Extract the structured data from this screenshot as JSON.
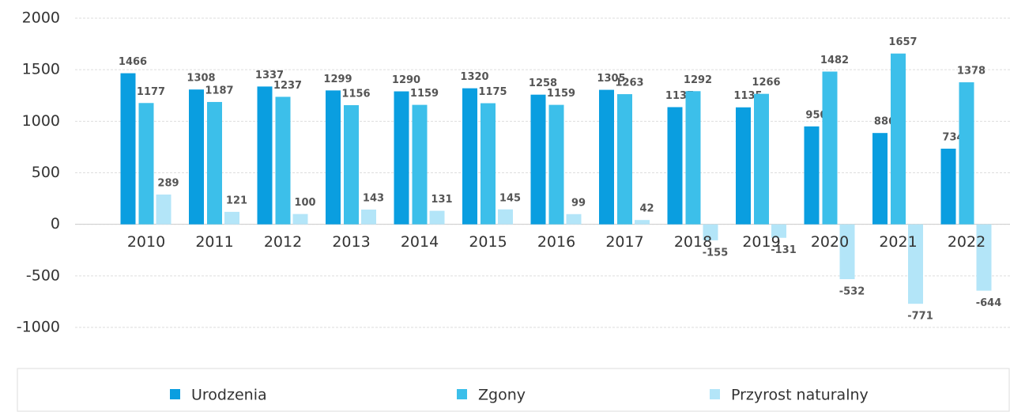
{
  "chart_data": {
    "type": "bar",
    "categories": [
      "2010",
      "2011",
      "2012",
      "2013",
      "2014",
      "2015",
      "2016",
      "2017",
      "2018",
      "2019",
      "2020",
      "2021",
      "2022"
    ],
    "series": [
      {
        "name": "Urodzenia",
        "color": "#0a9ee0",
        "values": [
          1466,
          1308,
          1337,
          1299,
          1290,
          1320,
          1258,
          1305,
          1137,
          1135,
          950,
          886,
          734
        ]
      },
      {
        "name": "Zgony",
        "color": "#3cbfea",
        "values": [
          1177,
          1187,
          1237,
          1156,
          1159,
          1175,
          1159,
          1263,
          1292,
          1266,
          1482,
          1657,
          1378
        ]
      },
      {
        "name": "Przyrost naturalny",
        "color": "#b3e5f8",
        "values": [
          289,
          121,
          100,
          143,
          131,
          145,
          99,
          42,
          -155,
          -131,
          -532,
          -771,
          -644
        ]
      }
    ],
    "ylim": [
      -1000,
      2000
    ],
    "yticks": [
      2000,
      1500,
      1000,
      500,
      0,
      -500,
      -1000
    ],
    "grid": true,
    "legend": "bottom"
  }
}
